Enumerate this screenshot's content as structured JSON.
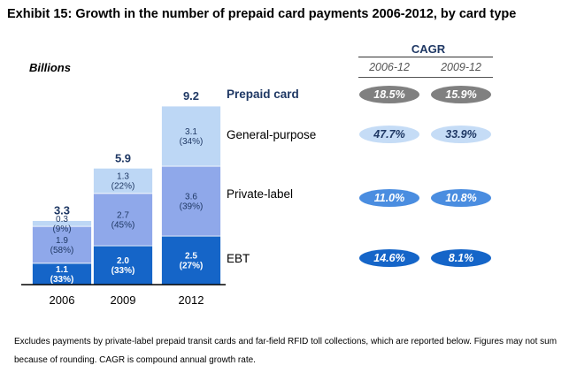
{
  "title": "Exhibit 15: Growth in the number of prepaid card payments 2006-2012, by card type",
  "unit_label": "Billions",
  "cagr": {
    "header": "CAGR",
    "periods": [
      "2006-12",
      "2009-12"
    ]
  },
  "rows": [
    {
      "label": "Prepaid card",
      "cagr": [
        "18.5%",
        "15.9%"
      ]
    },
    {
      "label": "General-purpose",
      "cagr": [
        "47.7%",
        "33.9%"
      ]
    },
    {
      "label": "Private-label",
      "cagr": [
        "11.0%",
        "10.8%"
      ]
    },
    {
      "label": "EBT",
      "cagr": [
        "14.6%",
        "8.1%"
      ]
    }
  ],
  "colors": {
    "ebt": "#1565c8",
    "private_label": "#8fa8ea",
    "general_purpose": "#bdd7f5",
    "badge_gray": "#808080",
    "badge_light": "#c5dcf6",
    "badge_mid": "#4a8de0",
    "badge_dark": "#1565c8",
    "total_text": "#1f3864"
  },
  "chart_data": {
    "type": "bar",
    "stacked": true,
    "categories": [
      "2006",
      "2009",
      "2012"
    ],
    "totals": [
      3.3,
      5.9,
      9.2
    ],
    "series": [
      {
        "name": "EBT",
        "values": [
          1.1,
          2.0,
          2.5
        ],
        "labels": [
          "1.1\n(33%)",
          "2.0\n(33%)",
          "2.5\n(27%)"
        ]
      },
      {
        "name": "Private-label",
        "values": [
          1.9,
          2.7,
          3.6
        ],
        "labels": [
          "1.9\n(58%)",
          "2.7\n(45%)",
          "3.6\n(39%)"
        ]
      },
      {
        "name": "General-purpose",
        "values": [
          0.3,
          1.3,
          3.1
        ],
        "labels": [
          "0.3\n(9%)",
          "1.3\n(22%)",
          "3.1\n(34%)"
        ]
      }
    ],
    "ylim": [
      0,
      9.2
    ],
    "grid": false
  },
  "footnote": "Excludes payments by private-label prepaid transit cards and far-field RFID toll collections, which are reported below.  Figures may not sum because of rounding.  CAGR is compound annual growth rate."
}
